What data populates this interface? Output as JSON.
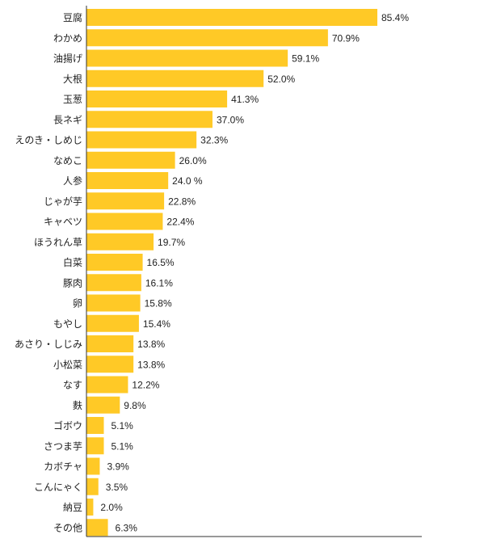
{
  "chart_data": {
    "type": "bar",
    "orientation": "horizontal",
    "categories": [
      "豆腐",
      "わかめ",
      "油揚げ",
      "大根",
      "玉葱",
      "長ネギ",
      "えのき・しめじ",
      "なめこ",
      "人参",
      "じゃが芋",
      "キャベツ",
      "ほうれん草",
      "白菜",
      "豚肉",
      "卵",
      "もやし",
      "あさり・しじみ",
      "小松菜",
      "なす",
      "麩",
      "ゴボウ",
      "さつま芋",
      "カボチャ",
      "こんにゃく",
      "納豆",
      "その他"
    ],
    "values": [
      85.4,
      70.9,
      59.1,
      52.0,
      41.3,
      37.0,
      32.3,
      26.0,
      24.0,
      22.8,
      22.4,
      19.7,
      16.5,
      16.1,
      15.8,
      15.4,
      13.8,
      13.8,
      12.2,
      9.8,
      5.1,
      5.1,
      3.9,
      3.5,
      2.0,
      6.3
    ],
    "value_labels": [
      "85.4%",
      "70.9%",
      "59.1%",
      "52.0%",
      "41.3%",
      "37.0%",
      "32.3%",
      "26.0%",
      "24.0 %",
      "22.8%",
      "22.4%",
      "19.7%",
      "16.5%",
      "16.1%",
      "15.8%",
      "15.4%",
      "13.8%",
      "13.8%",
      "12.2%",
      "9.8%",
      "5.1%",
      "5.1%",
      "3.9%",
      "3.5%",
      "2.0%",
      "6.3%"
    ],
    "title": "",
    "xlabel": "",
    "ylabel": "",
    "xlim": [
      0,
      100
    ],
    "grid": false,
    "legend": "none",
    "bar_color": "#FFC926",
    "axis_color": "#333333"
  }
}
